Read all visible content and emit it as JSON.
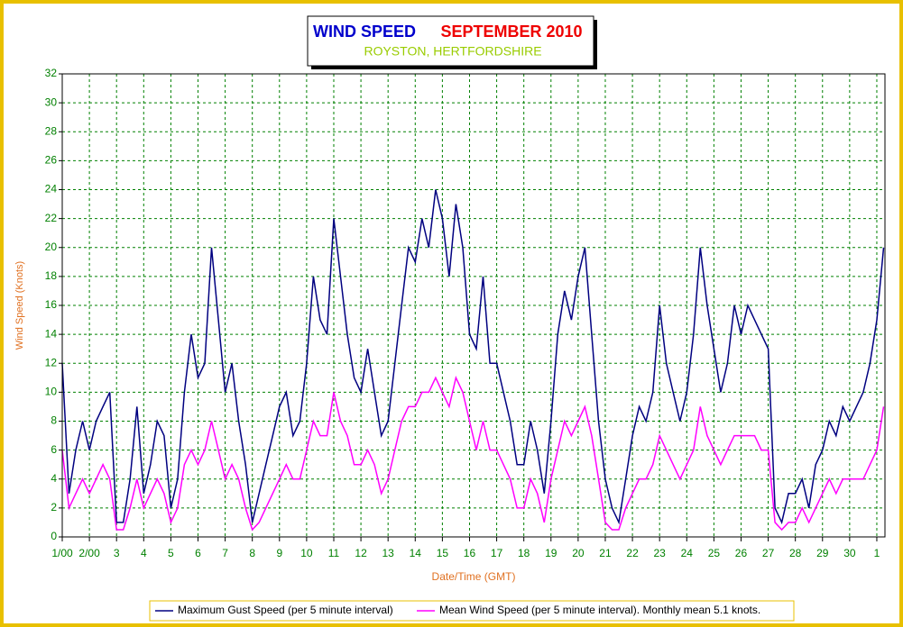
{
  "chart_data": {
    "type": "line",
    "title": "WIND SPEED",
    "title_period": "SEPTEMBER 2010",
    "subtitle": "ROYSTON, HERTFORDSHIRE",
    "y_label": "Wind Speed (Knots)",
    "x_label": "Date/Time (GMT)",
    "x": [
      0,
      0.25,
      0.5,
      0.75,
      1,
      1.25,
      1.5,
      1.75,
      2,
      2.25,
      2.5,
      2.75,
      3,
      3.25,
      3.5,
      3.75,
      4,
      4.25,
      4.5,
      4.75,
      5,
      5.25,
      5.5,
      5.75,
      6,
      6.25,
      6.5,
      6.75,
      7,
      7.25,
      7.5,
      7.75,
      8,
      8.25,
      8.5,
      8.75,
      9,
      9.25,
      9.5,
      9.75,
      10,
      10.25,
      10.5,
      10.75,
      11,
      11.25,
      11.5,
      11.75,
      12,
      12.25,
      12.5,
      12.75,
      13,
      13.25,
      13.5,
      13.75,
      14,
      14.25,
      14.5,
      14.75,
      15,
      15.25,
      15.5,
      15.75,
      16,
      16.25,
      16.5,
      16.75,
      17,
      17.25,
      17.5,
      17.75,
      18,
      18.25,
      18.5,
      18.75,
      19,
      19.25,
      19.5,
      19.75,
      20,
      20.25,
      20.5,
      20.75,
      21,
      21.25,
      21.5,
      21.75,
      22,
      22.25,
      22.5,
      22.75,
      23,
      23.25,
      23.5,
      23.75,
      24,
      24.25,
      24.5,
      24.75,
      25,
      25.25,
      25.5,
      25.75,
      26,
      26.25,
      26.5,
      26.75,
      27,
      27.25,
      27.5,
      27.75,
      28,
      28.25,
      28.5,
      28.75,
      29,
      29.25,
      29.5,
      29.75,
      30,
      30.25
    ],
    "series": [
      {
        "name": "Maximum Gust Speed (per 5 minute interval)",
        "color": "#000080",
        "values": [
          12,
          3,
          6,
          8,
          6,
          8,
          9,
          10,
          1,
          1,
          4,
          9,
          3,
          5,
          8,
          7,
          2,
          4,
          10,
          14,
          11,
          12,
          20,
          15,
          10,
          12,
          8,
          5,
          1,
          3,
          5,
          7,
          9,
          10,
          7,
          8,
          12,
          18,
          15,
          14,
          22,
          18,
          14,
          11,
          10,
          13,
          10,
          7,
          8,
          12,
          16,
          20,
          19,
          22,
          20,
          24,
          22,
          18,
          23,
          20,
          14,
          13,
          18,
          12,
          12,
          10,
          8,
          5,
          5,
          8,
          6,
          3,
          8,
          14,
          17,
          15,
          18,
          20,
          14,
          8,
          4,
          2,
          1,
          4,
          7,
          9,
          8,
          10,
          16,
          12,
          10,
          8,
          10,
          14,
          20,
          16,
          13,
          10,
          12,
          16,
          14,
          16,
          15,
          14,
          13,
          2,
          1,
          3,
          3,
          4,
          2,
          5,
          6,
          8,
          7,
          9,
          8,
          9,
          10,
          12,
          15,
          20
        ]
      },
      {
        "name": "Mean Wind Speed (per 5 minute interval). Monthly mean 5.1 knots.",
        "color": "#ff00ff",
        "values": [
          6,
          2,
          3,
          4,
          3,
          4,
          5,
          4,
          0.5,
          0.5,
          2,
          4,
          2,
          3,
          4,
          3,
          1,
          2,
          5,
          6,
          5,
          6,
          8,
          6,
          4,
          5,
          4,
          2,
          0.5,
          1,
          2,
          3,
          4,
          5,
          4,
          4,
          6,
          8,
          7,
          7,
          10,
          8,
          7,
          5,
          5,
          6,
          5,
          3,
          4,
          6,
          8,
          9,
          9,
          10,
          10,
          11,
          10,
          9,
          11,
          10,
          8,
          6,
          8,
          6,
          6,
          5,
          4,
          2,
          2,
          4,
          3,
          1,
          4,
          6,
          8,
          7,
          8,
          9,
          7,
          4,
          1,
          0.5,
          0.5,
          2,
          3,
          4,
          4,
          5,
          7,
          6,
          5,
          4,
          5,
          6,
          9,
          7,
          6,
          5,
          6,
          7,
          7,
          7,
          7,
          6,
          6,
          1,
          0.5,
          1,
          1,
          2,
          1,
          2,
          3,
          4,
          3,
          4,
          4,
          4,
          4,
          5,
          6,
          9
        ]
      }
    ],
    "xlim": [
      0,
      30.3
    ],
    "xticks": [
      {
        "value": 0,
        "label": "1/00"
      },
      {
        "value": 1,
        "label": "2/00"
      },
      {
        "value": 2,
        "label": "3"
      },
      {
        "value": 3,
        "label": "4"
      },
      {
        "value": 4,
        "label": "5"
      },
      {
        "value": 5,
        "label": "6"
      },
      {
        "value": 6,
        "label": "7"
      },
      {
        "value": 7,
        "label": "8"
      },
      {
        "value": 8,
        "label": "9"
      },
      {
        "value": 9,
        "label": "10"
      },
      {
        "value": 10,
        "label": "11"
      },
      {
        "value": 11,
        "label": "12"
      },
      {
        "value": 12,
        "label": "13"
      },
      {
        "value": 13,
        "label": "14"
      },
      {
        "value": 14,
        "label": "15"
      },
      {
        "value": 15,
        "label": "16"
      },
      {
        "value": 16,
        "label": "17"
      },
      {
        "value": 17,
        "label": "18"
      },
      {
        "value": 18,
        "label": "19"
      },
      {
        "value": 19,
        "label": "20"
      },
      {
        "value": 20,
        "label": "21"
      },
      {
        "value": 21,
        "label": "22"
      },
      {
        "value": 22,
        "label": "23"
      },
      {
        "value": 23,
        "label": "24"
      },
      {
        "value": 24,
        "label": "25"
      },
      {
        "value": 25,
        "label": "26"
      },
      {
        "value": 26,
        "label": "27"
      },
      {
        "value": 27,
        "label": "28"
      },
      {
        "value": 28,
        "label": "29"
      },
      {
        "value": 29,
        "label": "30"
      },
      {
        "value": 30,
        "label": "1"
      }
    ],
    "ylim": [
      0,
      32
    ],
    "yticks": [
      0,
      2,
      4,
      6,
      8,
      10,
      12,
      14,
      16,
      18,
      20,
      22,
      24,
      26,
      28,
      30,
      32
    ],
    "grid": true
  }
}
